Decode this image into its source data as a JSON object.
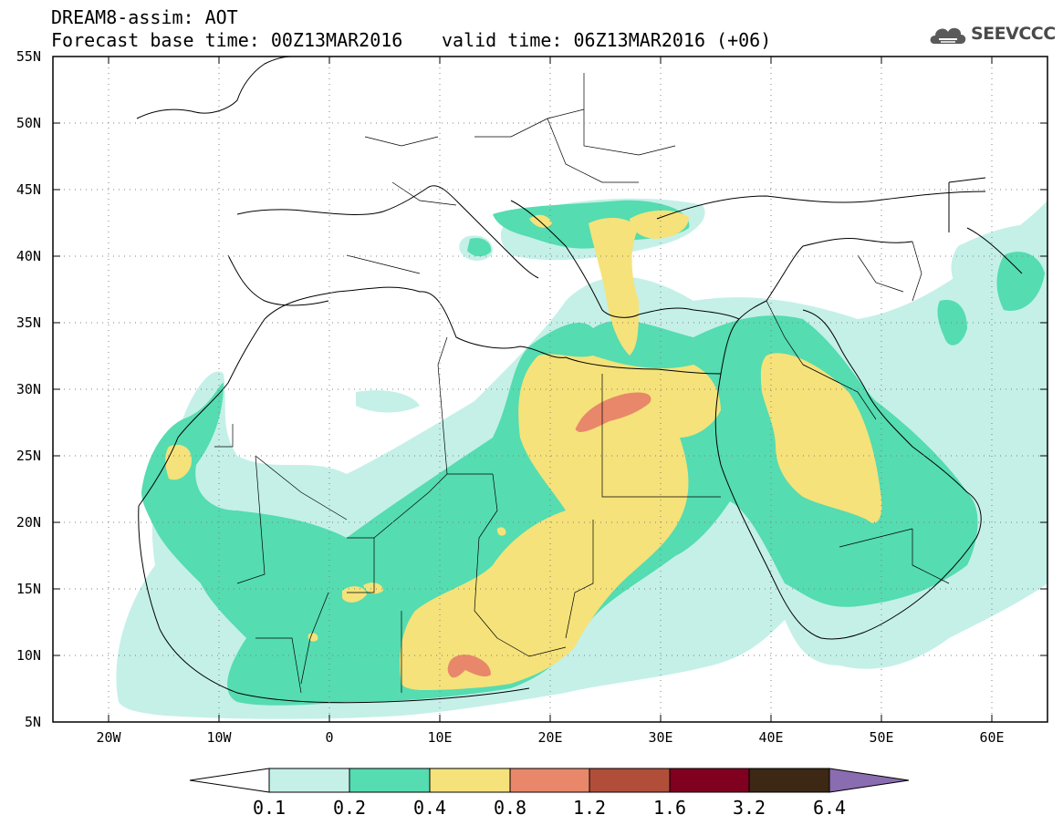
{
  "header": {
    "title": "DREAM8-assim: AOT",
    "base_time": "Forecast base time: 00Z13MAR2016",
    "valid_time": "valid time: 06Z13MAR2016 (+06)"
  },
  "logo": {
    "text": "SEEVCCC",
    "icon": "cloud-icon"
  },
  "map": {
    "projection": "lat-lon",
    "lon_range": [
      -25,
      65
    ],
    "lat_range": [
      5,
      55
    ],
    "lat_labels": [
      "55N",
      "50N",
      "45N",
      "40N",
      "35N",
      "30N",
      "25N",
      "20N",
      "15N",
      "10N",
      "5N"
    ],
    "lon_labels": [
      "20W",
      "10W",
      "0",
      "10E",
      "20E",
      "30E",
      "40E",
      "50E",
      "60E"
    ],
    "grid": "dotted"
  },
  "colorbar": {
    "labels": [
      "0.1",
      "0.2",
      "0.4",
      "0.8",
      "1.2",
      "1.6",
      "3.2",
      "6.4"
    ],
    "colors": [
      "#ffffff",
      "#c4f0e8",
      "#55dcb0",
      "#f5e27a",
      "#e8876a",
      "#b04e3a",
      "#800020",
      "#3c2814",
      "#8a6cb0"
    ]
  }
}
